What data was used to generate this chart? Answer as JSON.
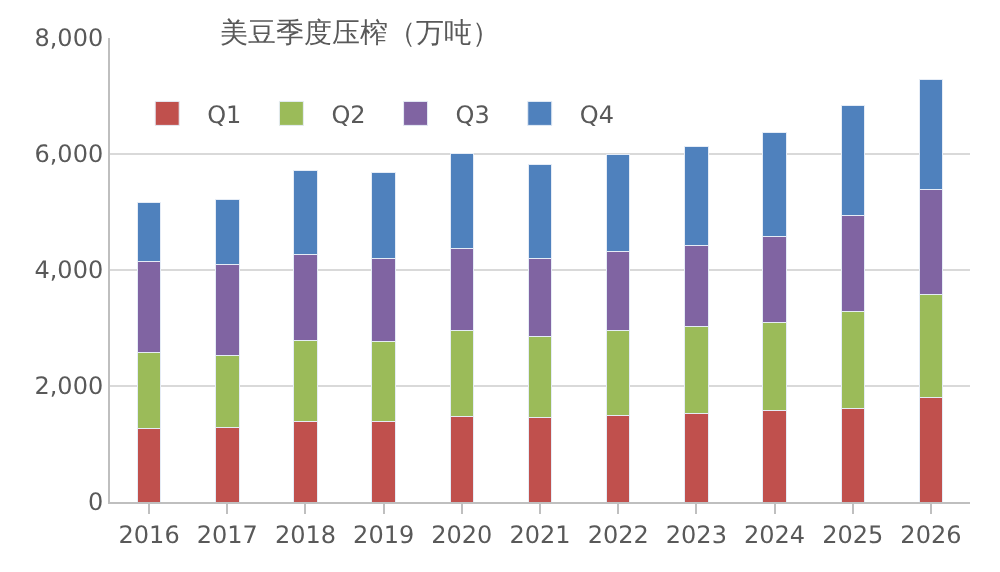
{
  "chart_data": {
    "type": "bar",
    "title": "美豆季度压榨（万吨）",
    "stacked": true,
    "categories": [
      "2016",
      "2017",
      "2018",
      "2019",
      "2020",
      "2021",
      "2022",
      "2023",
      "2024",
      "2025",
      "2026"
    ],
    "series": [
      {
        "name": "Q1",
        "color": "#c0504d",
        "values": [
          1270,
          1290,
          1390,
          1390,
          1470,
          1460,
          1490,
          1530,
          1570,
          1620,
          1810
        ]
      },
      {
        "name": "Q2",
        "color": "#9bbb59",
        "values": [
          1300,
          1240,
          1400,
          1370,
          1490,
          1390,
          1460,
          1490,
          1530,
          1660,
          1770
        ]
      },
      {
        "name": "Q3",
        "color": "#8064a2",
        "values": [
          1580,
          1560,
          1470,
          1440,
          1410,
          1350,
          1370,
          1400,
          1480,
          1660,
          1810
        ]
      },
      {
        "name": "Q4",
        "color": "#4f81bd",
        "values": [
          1010,
          1120,
          1460,
          1480,
          1640,
          1620,
          1670,
          1710,
          1790,
          1900,
          1890
        ]
      }
    ],
    "ylim": [
      0,
      8000
    ],
    "yticks": [
      {
        "value": 0,
        "label": "0"
      },
      {
        "value": 2000,
        "label": "2,000"
      },
      {
        "value": 4000,
        "label": "4,000"
      },
      {
        "value": 6000,
        "label": "6,000"
      },
      {
        "value": 8000,
        "label": "8,000"
      }
    ],
    "grid": "y",
    "legend": "top left"
  }
}
